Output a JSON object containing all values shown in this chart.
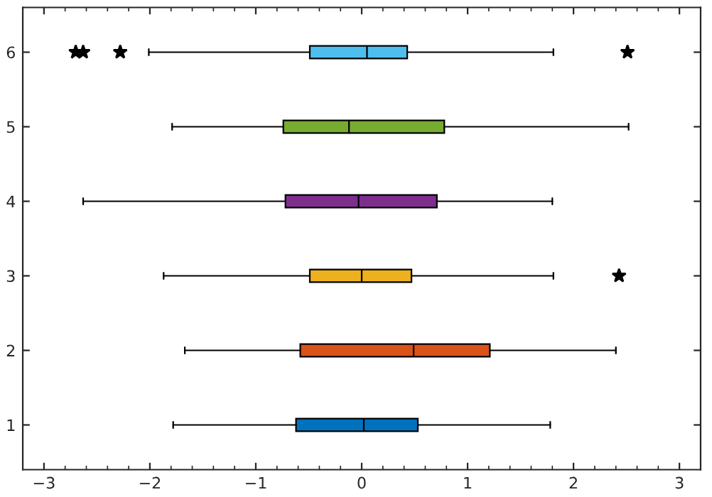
{
  "chart_data": {
    "type": "box",
    "orientation": "horizontal",
    "categories": [
      "6",
      "5",
      "4",
      "3",
      "2",
      "1"
    ],
    "boxes": [
      {
        "low": -2.01,
        "q1": -0.49,
        "median": 0.05,
        "q3": 0.43,
        "high": 1.81,
        "outliers": [
          -2.7,
          -2.63,
          -2.28,
          2.51
        ]
      },
      {
        "low": -1.79,
        "q1": -0.74,
        "median": -0.12,
        "q3": 0.78,
        "high": 2.52
      },
      {
        "low": -2.63,
        "q1": -0.72,
        "median": -0.03,
        "q3": 0.71,
        "high": 1.8
      },
      {
        "low": -1.87,
        "q1": -0.49,
        "median": 0.0,
        "q3": 0.47,
        "high": 1.81,
        "outliers": [
          2.43
        ]
      },
      {
        "low": -1.67,
        "q1": -0.58,
        "median": 0.49,
        "q3": 1.21,
        "high": 2.4
      },
      {
        "low": -1.78,
        "q1": -0.62,
        "median": 0.02,
        "q3": 0.53,
        "high": 1.78
      }
    ],
    "colors": [
      "#4dbeee",
      "#77ac30",
      "#7e2f8e",
      "#edb120",
      "#d95319",
      "#0072bd"
    ],
    "xlim": [
      -3.2,
      3.2
    ],
    "xticks": [
      {
        "value": -3,
        "label": "−3"
      },
      {
        "value": -2,
        "label": "−2"
      },
      {
        "value": -1,
        "label": "−1"
      },
      0,
      1,
      2,
      3
    ],
    "marker": "star",
    "grid": false,
    "legend": false
  }
}
